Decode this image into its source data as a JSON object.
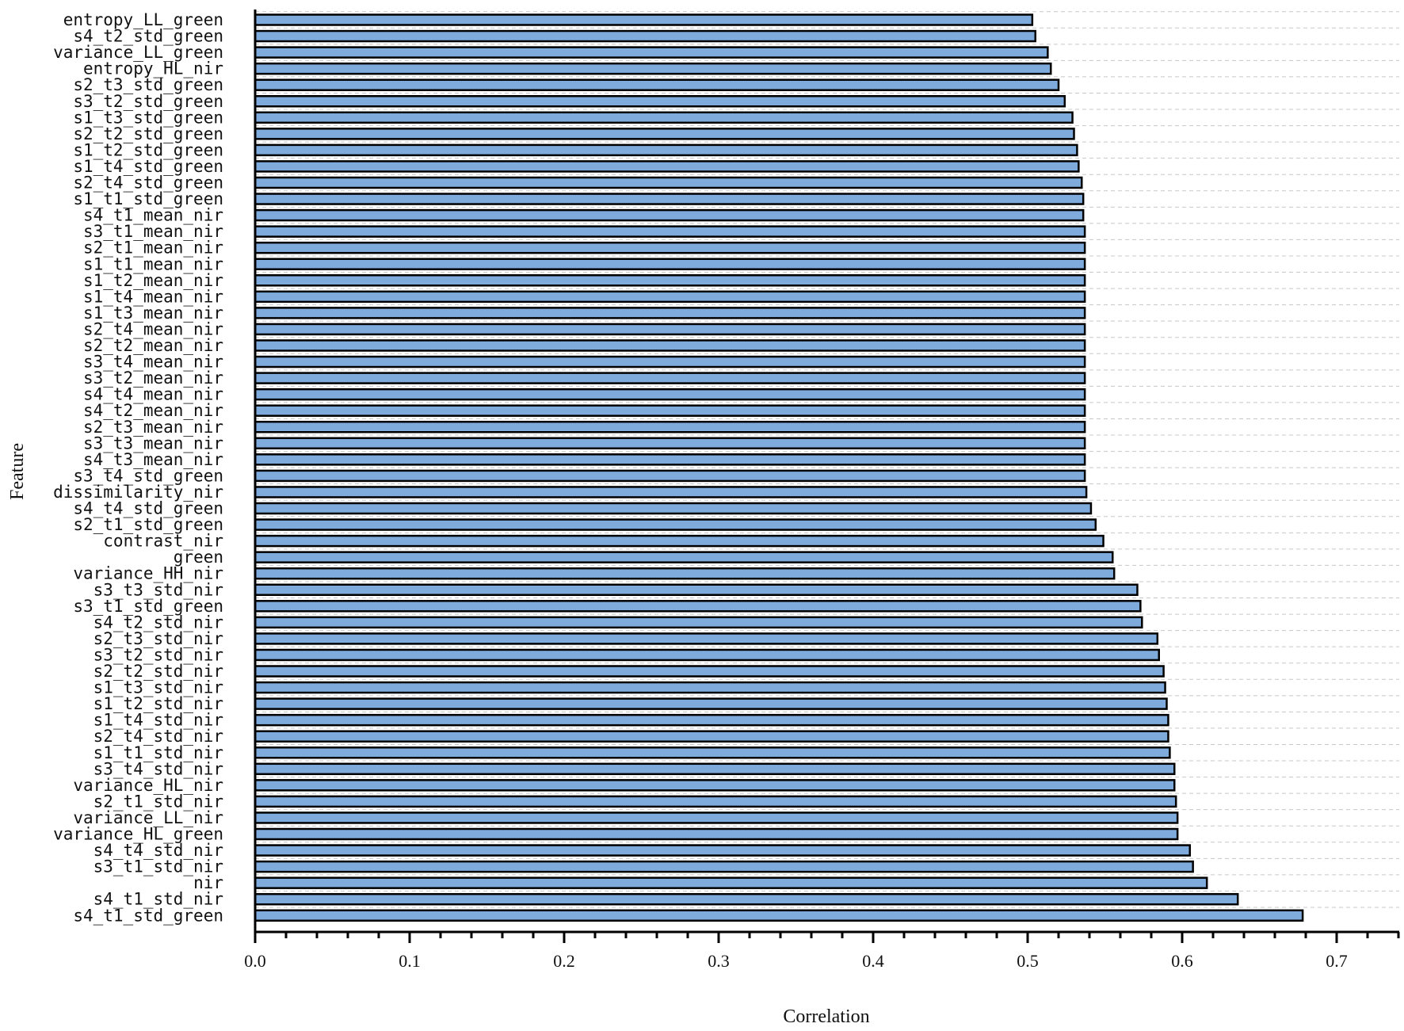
{
  "chart_data": {
    "type": "bar",
    "orientation": "horizontal",
    "xlabel": "Correlation",
    "ylabel": "Feature",
    "xlim": [
      0,
      0.74
    ],
    "xticks": [
      "0.0",
      "0.1",
      "0.2",
      "0.3",
      "0.4",
      "0.5",
      "0.6",
      "0.7"
    ],
    "grid": true,
    "bar_color": "#7eaadc",
    "categories": [
      "entropy_LL_green",
      "s4_t2_std_green",
      "variance_LL_green",
      "entropy_HL_nir",
      "s2_t3_std_green",
      "s3_t2_std_green",
      "s1_t3_std_green",
      "s2_t2_std_green",
      "s1_t2_std_green",
      "s1_t4_std_green",
      "s2_t4_std_green",
      "s1_t1_std_green",
      "s4_t1_mean_nir",
      "s3_t1_mean_nir",
      "s2_t1_mean_nir",
      "s1_t1_mean_nir",
      "s1_t2_mean_nir",
      "s1_t4_mean_nir",
      "s1_t3_mean_nir",
      "s2_t4_mean_nir",
      "s2_t2_mean_nir",
      "s3_t4_mean_nir",
      "s3_t2_mean_nir",
      "s4_t4_mean_nir",
      "s4_t2_mean_nir",
      "s2_t3_mean_nir",
      "s3_t3_mean_nir",
      "s4_t3_mean_nir",
      "s3_t4_std_green",
      "dissimilarity_nir",
      "s4_t4_std_green",
      "s2_t1_std_green",
      "contrast_nir",
      "green",
      "variance_HH_nir",
      "s3_t3_std_nir",
      "s3_t1_std_green",
      "s4_t2_std_nir",
      "s2_t3_std_nir",
      "s3_t2_std_nir",
      "s2_t2_std_nir",
      "s1_t3_std_nir",
      "s1_t2_std_nir",
      "s1_t4_std_nir",
      "s2_t4_std_nir",
      "s1_t1_std_nir",
      "s3_t4_std_nir",
      "variance_HL_nir",
      "s2_t1_std_nir",
      "variance_LL_nir",
      "variance_HL_green",
      "s4_t4_std_nir",
      "s3_t1_std_nir",
      "nir",
      "s4_t1_std_nir",
      "s4_t1_std_green"
    ],
    "values": [
      0.503,
      0.505,
      0.513,
      0.515,
      0.52,
      0.524,
      0.529,
      0.53,
      0.532,
      0.533,
      0.535,
      0.536,
      0.536,
      0.537,
      0.537,
      0.537,
      0.537,
      0.537,
      0.537,
      0.537,
      0.537,
      0.537,
      0.537,
      0.537,
      0.537,
      0.537,
      0.537,
      0.537,
      0.537,
      0.538,
      0.541,
      0.544,
      0.549,
      0.555,
      0.556,
      0.571,
      0.573,
      0.574,
      0.584,
      0.585,
      0.588,
      0.589,
      0.59,
      0.591,
      0.591,
      0.592,
      0.595,
      0.595,
      0.596,
      0.597,
      0.597,
      0.605,
      0.607,
      0.616,
      0.636,
      0.678
    ]
  }
}
